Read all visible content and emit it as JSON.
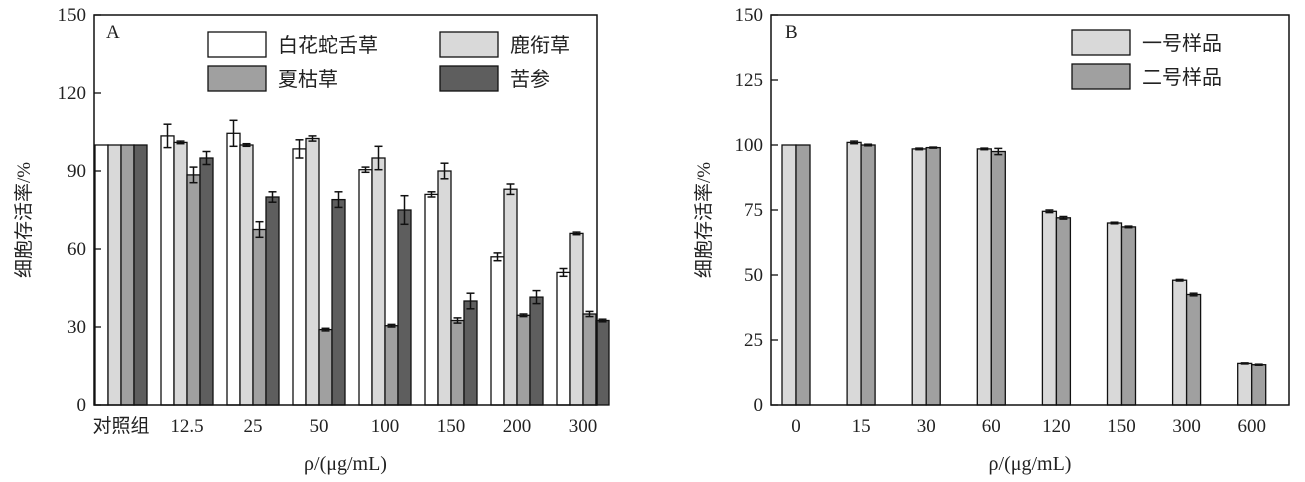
{
  "chart_data": [
    {
      "type": "bar",
      "panel_label": "A",
      "xlabel": "ρ/(μg/mL)",
      "ylabel": "细胞存活率/%",
      "ylim": [
        0,
        150
      ],
      "yticks": [
        0,
        30,
        60,
        90,
        120,
        150
      ],
      "categories": [
        "对照组",
        "12.5",
        "25",
        "50",
        "100",
        "150",
        "200",
        "300"
      ],
      "legend_placement": "top-right",
      "error_bars": true,
      "series": [
        {
          "name": "白花蛇舌草",
          "color": "#ffffff",
          "values": [
            100,
            103.5,
            104.5,
            98.5,
            90.5,
            81,
            57,
            51
          ],
          "errors": [
            0,
            4.5,
            5,
            3.5,
            1,
            1,
            1.5,
            1.5
          ]
        },
        {
          "name": "鹿衔草",
          "color": "#d9d9d9",
          "values": [
            100,
            101,
            100,
            102.5,
            95,
            90,
            83,
            66
          ],
          "errors": [
            0,
            0.5,
            0.5,
            1,
            4.5,
            3,
            2,
            0.5
          ]
        },
        {
          "name": "夏枯草",
          "color": "#a0a0a0",
          "values": [
            100,
            88.5,
            67.5,
            29,
            30.5,
            32.5,
            34.5,
            35
          ],
          "errors": [
            0,
            3,
            3,
            0.5,
            0.5,
            1,
            0.5,
            1
          ]
        },
        {
          "name": "苦参",
          "color": "#5e5e5e",
          "values": [
            100,
            95,
            80,
            79,
            75,
            40,
            41.5,
            32.5
          ],
          "errors": [
            0,
            2.5,
            2,
            3,
            5.5,
            3,
            2.5,
            0.5
          ]
        }
      ]
    },
    {
      "type": "bar",
      "panel_label": "B",
      "xlabel": "ρ/(μg/mL)",
      "ylabel": "细胞存活率/%",
      "ylim": [
        0,
        150
      ],
      "yticks": [
        0,
        25,
        50,
        75,
        100,
        125,
        150
      ],
      "categories": [
        "0",
        "15",
        "30",
        "60",
        "120",
        "150",
        "300",
        "600"
      ],
      "legend_placement": "top-right",
      "error_bars": true,
      "series": [
        {
          "name": "一号样品",
          "color": "#d9d9d9",
          "values": [
            100,
            101,
            98.5,
            98.5,
            74.5,
            70,
            48,
            16
          ],
          "errors": [
            0,
            0.5,
            0.3,
            0.3,
            0.5,
            0.3,
            0.3,
            0.2
          ]
        },
        {
          "name": "二号样品",
          "color": "#a0a0a0",
          "values": [
            100,
            100,
            99,
            97.5,
            72,
            68.5,
            42.5,
            15.5
          ],
          "errors": [
            0,
            0.3,
            0.2,
            1.2,
            0.5,
            0.3,
            0.5,
            0.2
          ]
        }
      ]
    }
  ]
}
